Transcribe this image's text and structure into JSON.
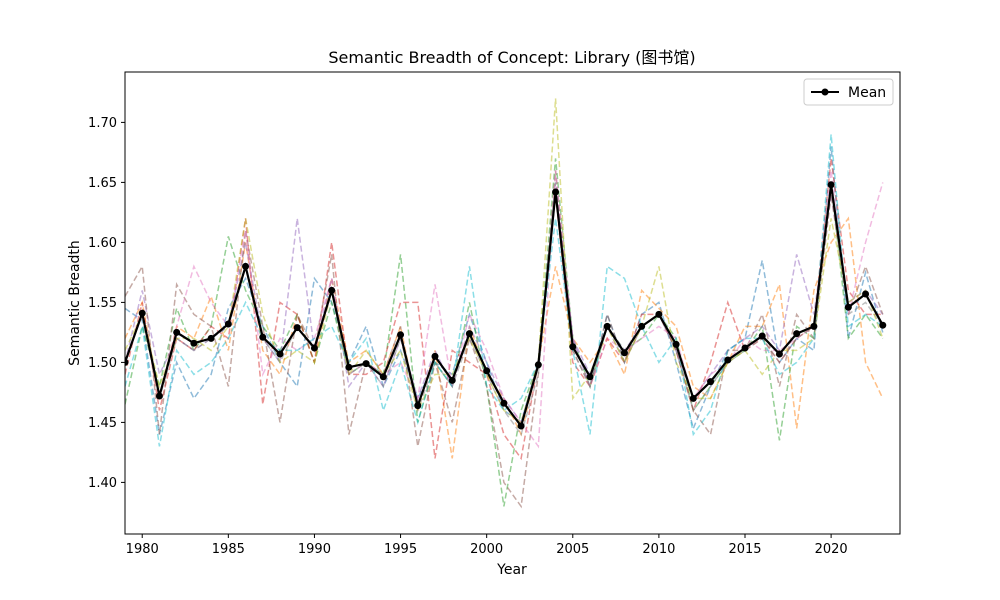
{
  "chart_data": {
    "type": "line",
    "title": "Semantic Breadth of Concept: Library (图书馆)",
    "xlabel": "Year",
    "ylabel": "Semantic Breadth",
    "xlim": [
      1979,
      2024
    ],
    "ylim": [
      1.357,
      1.742
    ],
    "x_ticks": [
      1980,
      1985,
      1990,
      1995,
      2000,
      2005,
      2010,
      2015,
      2020
    ],
    "y_ticks": [
      1.4,
      1.45,
      1.5,
      1.55,
      1.6,
      1.65,
      1.7
    ],
    "y_tick_labels": [
      "1.40",
      "1.45",
      "1.50",
      "1.55",
      "1.60",
      "1.65",
      "1.70"
    ],
    "x_tick_labels": [
      "1980",
      "1985",
      "1990",
      "1995",
      "2000",
      "2005",
      "2010",
      "2015",
      "2020"
    ],
    "legend": {
      "placement": "top-right",
      "entries": [
        "Mean"
      ]
    },
    "x": [
      1979,
      1980,
      1981,
      1982,
      1983,
      1984,
      1985,
      1986,
      1987,
      1988,
      1989,
      1990,
      1991,
      1992,
      1993,
      1994,
      1995,
      1996,
      1997,
      1998,
      1999,
      2000,
      2001,
      2002,
      2003,
      2004,
      2005,
      2006,
      2007,
      2008,
      2009,
      2010,
      2011,
      2012,
      2013,
      2014,
      2015,
      2016,
      2017,
      2018,
      2019,
      2020,
      2021,
      2022,
      2023
    ],
    "series": [
      {
        "name": "Mean",
        "color": "#000000",
        "style": "solid-with-markers",
        "values": [
          1.5,
          1.541,
          1.472,
          1.525,
          1.516,
          1.52,
          1.532,
          1.58,
          1.521,
          1.507,
          1.529,
          1.512,
          1.56,
          1.496,
          1.499,
          1.488,
          1.523,
          1.464,
          1.505,
          1.485,
          1.524,
          1.493,
          1.466,
          1.447,
          1.498,
          1.642,
          1.513,
          1.488,
          1.53,
          1.508,
          1.53,
          1.54,
          1.515,
          1.47,
          1.484,
          1.502,
          1.512,
          1.522,
          1.507,
          1.524,
          1.53,
          1.648,
          1.546,
          1.557,
          1.531
        ]
      },
      {
        "color": "#1f77b4",
        "style": "dashed",
        "values": [
          1.545,
          1.535,
          1.44,
          1.5,
          1.47,
          1.49,
          1.545,
          1.57,
          1.53,
          1.5,
          1.48,
          1.57,
          1.55,
          1.5,
          1.53,
          1.48,
          1.51,
          1.47,
          1.5,
          1.49,
          1.54,
          1.5,
          1.46,
          1.45,
          1.5,
          1.64,
          1.52,
          1.48,
          1.54,
          1.5,
          1.54,
          1.55,
          1.5,
          1.445,
          1.48,
          1.51,
          1.52,
          1.585,
          1.5,
          1.52,
          1.51,
          1.68,
          1.52,
          1.575,
          1.525
        ]
      },
      {
        "color": "#ff7f0e",
        "style": "dashed",
        "values": [
          1.52,
          1.55,
          1.47,
          1.53,
          1.52,
          1.555,
          1.51,
          1.6,
          1.51,
          1.49,
          1.54,
          1.5,
          1.57,
          1.5,
          1.51,
          1.49,
          1.53,
          1.46,
          1.51,
          1.42,
          1.53,
          1.49,
          1.47,
          1.44,
          1.5,
          1.58,
          1.52,
          1.5,
          1.52,
          1.49,
          1.56,
          1.545,
          1.53,
          1.48,
          1.47,
          1.5,
          1.53,
          1.53,
          1.565,
          1.445,
          1.56,
          1.6,
          1.62,
          1.5,
          1.47
        ]
      },
      {
        "color": "#2ca02c",
        "style": "dashed",
        "values": [
          1.465,
          1.53,
          1.48,
          1.545,
          1.51,
          1.53,
          1.605,
          1.56,
          1.53,
          1.51,
          1.54,
          1.5,
          1.55,
          1.49,
          1.5,
          1.49,
          1.59,
          1.45,
          1.5,
          1.48,
          1.55,
          1.48,
          1.38,
          1.46,
          1.5,
          1.67,
          1.52,
          1.48,
          1.53,
          1.51,
          1.52,
          1.54,
          1.52,
          1.46,
          1.48,
          1.5,
          1.51,
          1.53,
          1.435,
          1.53,
          1.52,
          1.65,
          1.52,
          1.54,
          1.52
        ]
      },
      {
        "color": "#d62728",
        "style": "dashed",
        "values": [
          1.49,
          1.55,
          1.46,
          1.52,
          1.51,
          1.53,
          1.52,
          1.62,
          1.465,
          1.55,
          1.54,
          1.5,
          1.6,
          1.49,
          1.49,
          1.5,
          1.55,
          1.55,
          1.42,
          1.51,
          1.5,
          1.49,
          1.44,
          1.42,
          1.5,
          1.64,
          1.5,
          1.48,
          1.52,
          1.5,
          1.54,
          1.54,
          1.51,
          1.46,
          1.5,
          1.55,
          1.51,
          1.52,
          1.5,
          1.52,
          1.53,
          1.67,
          1.56,
          1.54,
          1.54
        ]
      },
      {
        "color": "#9467bd",
        "style": "dashed",
        "values": [
          1.5,
          1.56,
          1.49,
          1.52,
          1.51,
          1.52,
          1.53,
          1.6,
          1.52,
          1.5,
          1.62,
          1.51,
          1.57,
          1.48,
          1.5,
          1.48,
          1.52,
          1.47,
          1.51,
          1.48,
          1.53,
          1.5,
          1.47,
          1.45,
          1.5,
          1.65,
          1.52,
          1.49,
          1.53,
          1.51,
          1.53,
          1.54,
          1.51,
          1.47,
          1.49,
          1.51,
          1.52,
          1.53,
          1.51,
          1.59,
          1.54,
          1.64,
          1.55,
          1.56,
          1.54
        ]
      },
      {
        "color": "#8c564b",
        "style": "dashed",
        "values": [
          1.555,
          1.58,
          1.44,
          1.565,
          1.54,
          1.53,
          1.48,
          1.61,
          1.53,
          1.45,
          1.54,
          1.51,
          1.59,
          1.44,
          1.5,
          1.49,
          1.53,
          1.43,
          1.5,
          1.45,
          1.52,
          1.48,
          1.4,
          1.38,
          1.49,
          1.66,
          1.51,
          1.48,
          1.54,
          1.5,
          1.53,
          1.54,
          1.51,
          1.46,
          1.44,
          1.51,
          1.51,
          1.54,
          1.48,
          1.54,
          1.52,
          1.64,
          1.54,
          1.58,
          1.54
        ]
      },
      {
        "color": "#e377c2",
        "style": "dashed",
        "values": [
          1.5,
          1.54,
          1.47,
          1.53,
          1.58,
          1.55,
          1.53,
          1.61,
          1.49,
          1.52,
          1.51,
          1.52,
          1.57,
          1.49,
          1.5,
          1.49,
          1.5,
          1.47,
          1.565,
          1.48,
          1.54,
          1.51,
          1.47,
          1.45,
          1.43,
          1.66,
          1.52,
          1.48,
          1.52,
          1.51,
          1.52,
          1.53,
          1.52,
          1.47,
          1.49,
          1.5,
          1.52,
          1.51,
          1.51,
          1.52,
          1.53,
          1.66,
          1.54,
          1.6,
          1.65
        ]
      },
      {
        "color": "#7f7f7f",
        "style": "dashed",
        "values": [
          1.5,
          1.54,
          1.47,
          1.52,
          1.51,
          1.52,
          1.53,
          1.58,
          1.52,
          1.5,
          1.53,
          1.51,
          1.56,
          1.49,
          1.5,
          1.48,
          1.52,
          1.46,
          1.5,
          1.48,
          1.52,
          1.49,
          1.46,
          1.44,
          1.49,
          1.65,
          1.51,
          1.48,
          1.53,
          1.5,
          1.53,
          1.54,
          1.51,
          1.46,
          1.48,
          1.5,
          1.51,
          1.52,
          1.5,
          1.52,
          1.53,
          1.65,
          1.54,
          1.55,
          1.53
        ]
      },
      {
        "color": "#bcbd22",
        "style": "dashed",
        "values": [
          1.51,
          1.54,
          1.48,
          1.52,
          1.52,
          1.51,
          1.53,
          1.62,
          1.54,
          1.5,
          1.51,
          1.5,
          1.56,
          1.49,
          1.51,
          1.49,
          1.51,
          1.46,
          1.49,
          1.49,
          1.52,
          1.49,
          1.46,
          1.45,
          1.5,
          1.72,
          1.47,
          1.49,
          1.53,
          1.5,
          1.53,
          1.58,
          1.5,
          1.47,
          1.47,
          1.5,
          1.51,
          1.49,
          1.51,
          1.51,
          1.52,
          1.62,
          1.55,
          1.56,
          1.52
        ]
      },
      {
        "color": "#17becf",
        "style": "dashed",
        "values": [
          1.48,
          1.53,
          1.43,
          1.51,
          1.49,
          1.5,
          1.52,
          1.55,
          1.52,
          1.51,
          1.51,
          1.52,
          1.53,
          1.5,
          1.52,
          1.46,
          1.5,
          1.45,
          1.5,
          1.48,
          1.58,
          1.48,
          1.46,
          1.47,
          1.5,
          1.62,
          1.51,
          1.44,
          1.58,
          1.57,
          1.53,
          1.5,
          1.52,
          1.44,
          1.46,
          1.51,
          1.52,
          1.52,
          1.49,
          1.5,
          1.52,
          1.69,
          1.53,
          1.54,
          1.53
        ]
      }
    ]
  }
}
